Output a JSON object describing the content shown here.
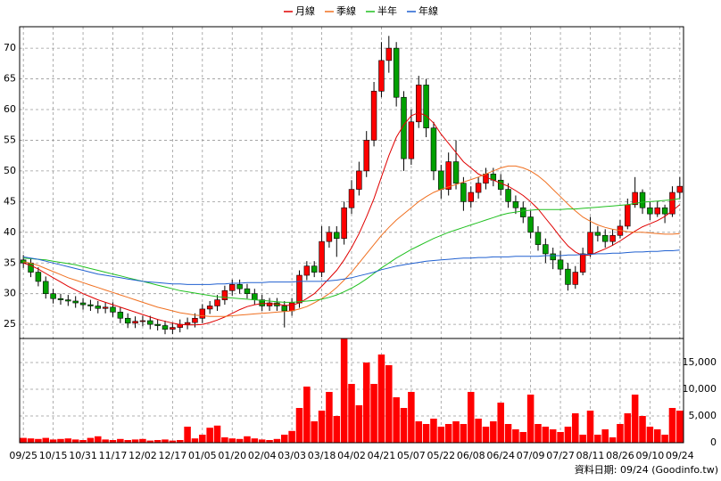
{
  "chart_data": [
    {
      "type": "candlestick",
      "legend": "top",
      "grid": true,
      "up_color": "#ff0000",
      "down_color": "#00a000",
      "open": [
        35.5,
        35.0,
        33.5,
        32.0,
        30.0,
        29.2,
        29.0,
        28.8,
        28.5,
        28.2,
        28.0,
        27.6,
        27.8,
        27.0,
        26.0,
        25.2,
        25.5,
        25.6,
        25.0,
        24.8,
        24.2,
        24.5,
        25.0,
        25.3,
        26.0,
        27.5,
        28.0,
        29.0,
        30.5,
        31.5,
        30.8,
        30.0,
        29.0,
        28.0,
        28.5,
        28.0,
        27.2,
        28.5,
        33.0,
        34.5,
        33.5,
        38.5,
        40.0,
        39.0,
        44.0,
        47.0,
        50.0,
        55.0,
        63.0,
        68.0,
        70.0,
        62.0,
        52.0,
        58.0,
        64.0,
        57.0,
        50.0,
        47.0,
        51.5,
        48.0,
        45.0,
        46.5,
        48.0,
        49.5,
        48.5,
        47.0,
        45.0,
        44.0,
        42.5,
        40.0,
        38.0,
        36.5,
        35.5,
        34.0,
        31.5,
        33.5,
        36.5,
        40.0,
        39.5,
        38.5,
        39.5,
        41.0,
        44.5,
        46.5,
        44.0,
        43.0,
        44.0,
        43.0,
        46.5
      ],
      "high": [
        36.3,
        35.8,
        34.3,
        32.8,
        30.8,
        30.0,
        29.8,
        29.6,
        29.3,
        29.0,
        28.8,
        28.6,
        28.6,
        27.8,
        26.8,
        26.3,
        26.4,
        26.4,
        25.8,
        25.6,
        25.3,
        25.8,
        26.1,
        26.8,
        28.3,
        28.8,
        29.8,
        31.3,
        32.3,
        32.3,
        31.6,
        30.8,
        29.8,
        29.3,
        29.3,
        28.8,
        29.3,
        33.8,
        35.3,
        35.3,
        41.0,
        41.0,
        41.0,
        45.0,
        48.5,
        51.5,
        56.5,
        64.5,
        71.0,
        72.0,
        71.0,
        63.0,
        60.0,
        65.5,
        65.0,
        58.0,
        51.0,
        53.0,
        55.0,
        49.0,
        47.5,
        49.0,
        50.5,
        50.5,
        49.5,
        48.0,
        46.0,
        45.0,
        43.5,
        41.0,
        39.0,
        37.5,
        37.0,
        35.0,
        34.5,
        37.5,
        42.5,
        41.0,
        40.5,
        40.5,
        42.0,
        45.5,
        49.0,
        47.0,
        45.0,
        45.0,
        44.5,
        47.5,
        49.0
      ],
      "low": [
        34.2,
        32.7,
        31.2,
        29.2,
        28.4,
        28.2,
        28.0,
        27.7,
        27.4,
        27.2,
        26.8,
        26.8,
        26.2,
        25.2,
        24.4,
        24.4,
        24.7,
        24.2,
        24.0,
        23.4,
        23.4,
        23.7,
        24.2,
        24.5,
        25.2,
        26.7,
        27.2,
        28.2,
        29.7,
        30.0,
        29.2,
        28.2,
        27.2,
        27.2,
        27.2,
        24.5,
        26.4,
        27.7,
        32.2,
        32.7,
        32.7,
        37.5,
        36.0,
        38.0,
        43.0,
        46.0,
        49.0,
        54.0,
        62.0,
        66.0,
        60.5,
        50.0,
        51.0,
        57.0,
        55.5,
        48.5,
        45.5,
        46.0,
        47.0,
        43.5,
        44.0,
        45.5,
        47.0,
        47.5,
        46.0,
        44.0,
        43.0,
        41.5,
        39.0,
        37.0,
        35.0,
        34.0,
        33.0,
        30.5,
        30.8,
        33.0,
        36.0,
        38.5,
        37.5,
        37.8,
        39.0,
        40.5,
        44.0,
        43.0,
        42.0,
        42.5,
        41.5,
        42.5,
        45.5
      ],
      "close": [
        35.0,
        33.5,
        32.0,
        30.0,
        29.2,
        29.0,
        28.8,
        28.5,
        28.2,
        28.0,
        27.6,
        27.8,
        27.0,
        26.0,
        25.2,
        25.5,
        25.6,
        25.0,
        24.8,
        24.2,
        24.5,
        25.0,
        25.3,
        26.0,
        27.5,
        28.0,
        29.0,
        30.5,
        31.5,
        30.8,
        30.0,
        29.0,
        28.0,
        28.5,
        28.0,
        27.2,
        28.5,
        33.0,
        34.5,
        33.5,
        38.5,
        40.0,
        39.0,
        44.0,
        47.0,
        50.0,
        55.0,
        63.0,
        68.0,
        70.0,
        62.0,
        52.0,
        58.0,
        64.0,
        57.0,
        50.0,
        47.0,
        51.5,
        48.0,
        45.0,
        46.5,
        48.0,
        49.5,
        48.5,
        47.0,
        45.0,
        44.0,
        42.5,
        40.0,
        38.0,
        36.5,
        35.5,
        34.0,
        31.5,
        33.5,
        36.5,
        40.0,
        39.5,
        38.5,
        39.5,
        41.0,
        44.5,
        46.5,
        44.0,
        43.0,
        44.0,
        43.0,
        46.5,
        47.5
      ],
      "series": [
        {
          "name": "月線",
          "color": "#e00000",
          "values": [
            35.0,
            34.6,
            34.0,
            33.3,
            32.6,
            31.9,
            31.2,
            30.6,
            30.0,
            29.5,
            29.0,
            28.6,
            28.2,
            27.8,
            27.4,
            27.0,
            26.6,
            26.2,
            25.8,
            25.5,
            25.2,
            25.0,
            24.9,
            24.9,
            25.0,
            25.3,
            25.7,
            26.2,
            26.8,
            27.4,
            27.9,
            28.2,
            28.4,
            28.4,
            28.3,
            28.1,
            28.1,
            28.5,
            29.2,
            30.0,
            31.2,
            32.5,
            33.8,
            35.5,
            37.5,
            39.8,
            42.5,
            45.5,
            49.0,
            52.5,
            55.5,
            57.5,
            59.0,
            59.5,
            59.0,
            57.8,
            56.0,
            54.5,
            53.0,
            51.5,
            50.5,
            49.5,
            49.0,
            48.5,
            48.0,
            47.5,
            46.8,
            46.0,
            45.0,
            43.8,
            42.3,
            40.8,
            39.2,
            37.8,
            36.8,
            36.2,
            36.3,
            36.8,
            37.3,
            37.9,
            38.6,
            39.4,
            40.2,
            40.9,
            41.4,
            41.9,
            42.6,
            43.5,
            44.5
          ]
        },
        {
          "name": "季線",
          "color": "#f07020",
          "values": [
            35.2,
            35.0,
            34.6,
            34.1,
            33.6,
            33.1,
            32.6,
            32.2,
            31.8,
            31.4,
            31.0,
            30.6,
            30.2,
            29.8,
            29.4,
            29.0,
            28.6,
            28.2,
            27.8,
            27.5,
            27.2,
            26.9,
            26.7,
            26.5,
            26.4,
            26.3,
            26.3,
            26.3,
            26.4,
            26.5,
            26.6,
            26.7,
            26.8,
            26.9,
            27.0,
            27.1,
            27.2,
            27.5,
            27.9,
            28.5,
            29.2,
            30.0,
            31.0,
            32.2,
            33.5,
            35.0,
            36.5,
            38.0,
            39.5,
            40.8,
            42.0,
            43.0,
            44.0,
            45.0,
            45.8,
            46.5,
            47.0,
            47.4,
            47.8,
            48.2,
            48.6,
            49.0,
            49.5,
            50.0,
            50.5,
            50.8,
            50.8,
            50.5,
            50.0,
            49.2,
            48.2,
            47.0,
            45.8,
            44.6,
            43.5,
            42.5,
            41.8,
            41.2,
            40.8,
            40.5,
            40.3,
            40.1,
            40.0,
            40.0,
            39.9,
            39.8,
            39.7,
            39.7,
            39.8
          ]
        },
        {
          "name": "半年",
          "color": "#20c020",
          "values": [
            35.8,
            35.7,
            35.6,
            35.5,
            35.3,
            35.1,
            34.9,
            34.7,
            34.4,
            34.1,
            33.8,
            33.5,
            33.2,
            32.9,
            32.6,
            32.3,
            32.0,
            31.7,
            31.4,
            31.1,
            30.8,
            30.5,
            30.3,
            30.1,
            29.9,
            29.7,
            29.5,
            29.4,
            29.3,
            29.2,
            29.1,
            29.0,
            28.9,
            28.8,
            28.7,
            28.6,
            28.6,
            28.7,
            28.8,
            28.9,
            29.1,
            29.4,
            29.8,
            30.3,
            30.9,
            31.6,
            32.4,
            33.3,
            34.2,
            35.0,
            35.8,
            36.5,
            37.2,
            37.8,
            38.4,
            39.0,
            39.5,
            40.0,
            40.4,
            40.8,
            41.2,
            41.6,
            42.0,
            42.4,
            42.8,
            43.1,
            43.3,
            43.5,
            43.6,
            43.7,
            43.7,
            43.7,
            43.7,
            43.8,
            43.8,
            43.9,
            44.0,
            44.1,
            44.2,
            44.3,
            44.4,
            44.5,
            44.7,
            44.9,
            45.0,
            45.1,
            45.2,
            45.3,
            45.5
          ]
        },
        {
          "name": "年線",
          "color": "#2060d0",
          "values": [
            36.0,
            35.8,
            35.6,
            35.3,
            35.0,
            34.7,
            34.4,
            34.1,
            33.8,
            33.5,
            33.2,
            33.0,
            32.8,
            32.6,
            32.4,
            32.2,
            32.0,
            31.9,
            31.8,
            31.7,
            31.6,
            31.6,
            31.5,
            31.5,
            31.5,
            31.5,
            31.6,
            31.6,
            31.7,
            31.7,
            31.8,
            31.8,
            31.8,
            31.9,
            31.9,
            31.9,
            31.9,
            32.0,
            32.0,
            32.0,
            32.0,
            32.1,
            32.2,
            32.4,
            32.6,
            32.9,
            33.2,
            33.5,
            33.9,
            34.2,
            34.5,
            34.7,
            34.9,
            35.1,
            35.3,
            35.4,
            35.5,
            35.6,
            35.7,
            35.8,
            35.8,
            35.9,
            35.9,
            36.0,
            36.0,
            36.0,
            36.1,
            36.1,
            36.1,
            36.1,
            36.2,
            36.2,
            36.2,
            36.3,
            36.3,
            36.4,
            36.4,
            36.5,
            36.5,
            36.6,
            36.6,
            36.7,
            36.8,
            36.8,
            36.9,
            36.9,
            37.0,
            37.0,
            37.1
          ]
        }
      ],
      "ylim": [
        22.7,
        73.5
      ],
      "yticks": [
        25,
        30,
        35,
        40,
        45,
        50,
        55,
        60,
        65,
        70
      ]
    },
    {
      "type": "bar",
      "color": "#ff0000",
      "grid": true,
      "categories": [
        "09/25",
        null,
        null,
        null,
        "10/15",
        null,
        null,
        null,
        "10/31",
        null,
        null,
        null,
        "11/17",
        null,
        null,
        null,
        "12/02",
        null,
        null,
        null,
        "12/17",
        null,
        null,
        null,
        "01/05",
        null,
        null,
        null,
        "01/20",
        null,
        null,
        null,
        "02/04",
        null,
        null,
        null,
        "03/03",
        null,
        null,
        null,
        "03/18",
        null,
        null,
        null,
        "04/02",
        null,
        null,
        null,
        "04/21",
        null,
        null,
        null,
        "05/07",
        null,
        null,
        null,
        "05/22",
        null,
        null,
        null,
        "06/08",
        null,
        null,
        null,
        "06/24",
        null,
        null,
        null,
        "07/09",
        null,
        null,
        null,
        "07/27",
        null,
        null,
        null,
        "08/11",
        null,
        null,
        null,
        "08/26",
        null,
        null,
        null,
        "09/10",
        null,
        null,
        null,
        "09/24"
      ],
      "values": [
        900,
        800,
        700,
        900,
        600,
        700,
        800,
        600,
        500,
        900,
        1200,
        600,
        500,
        700,
        500,
        600,
        700,
        400,
        500,
        600,
        400,
        500,
        3000,
        800,
        1500,
        2800,
        3200,
        1000,
        800,
        700,
        1200,
        800,
        600,
        500,
        700,
        1500,
        2200,
        6500,
        10500,
        4000,
        6000,
        9500,
        5000,
        19500,
        11000,
        7000,
        15000,
        11000,
        16500,
        14500,
        8500,
        6500,
        9500,
        4000,
        3500,
        4500,
        3000,
        3500,
        4000,
        3500,
        9500,
        4500,
        3000,
        4000,
        7500,
        3500,
        2500,
        2000,
        9000,
        3500,
        3000,
        2500,
        2000,
        3000,
        5500,
        1500,
        6000,
        1500,
        2500,
        1000,
        3500,
        5500,
        9000,
        5000,
        3000,
        2500,
        1500,
        6500,
        6000
      ],
      "ylim": [
        0,
        19500
      ],
      "yticks": [
        0,
        {
          "value": 5000,
          "label": "5,000"
        },
        {
          "value": 10000,
          "label": "10,000"
        },
        {
          "value": 15000,
          "label": "15,000"
        }
      ]
    }
  ],
  "footer": "資料日期: 09/24 (Goodinfo.tw)"
}
